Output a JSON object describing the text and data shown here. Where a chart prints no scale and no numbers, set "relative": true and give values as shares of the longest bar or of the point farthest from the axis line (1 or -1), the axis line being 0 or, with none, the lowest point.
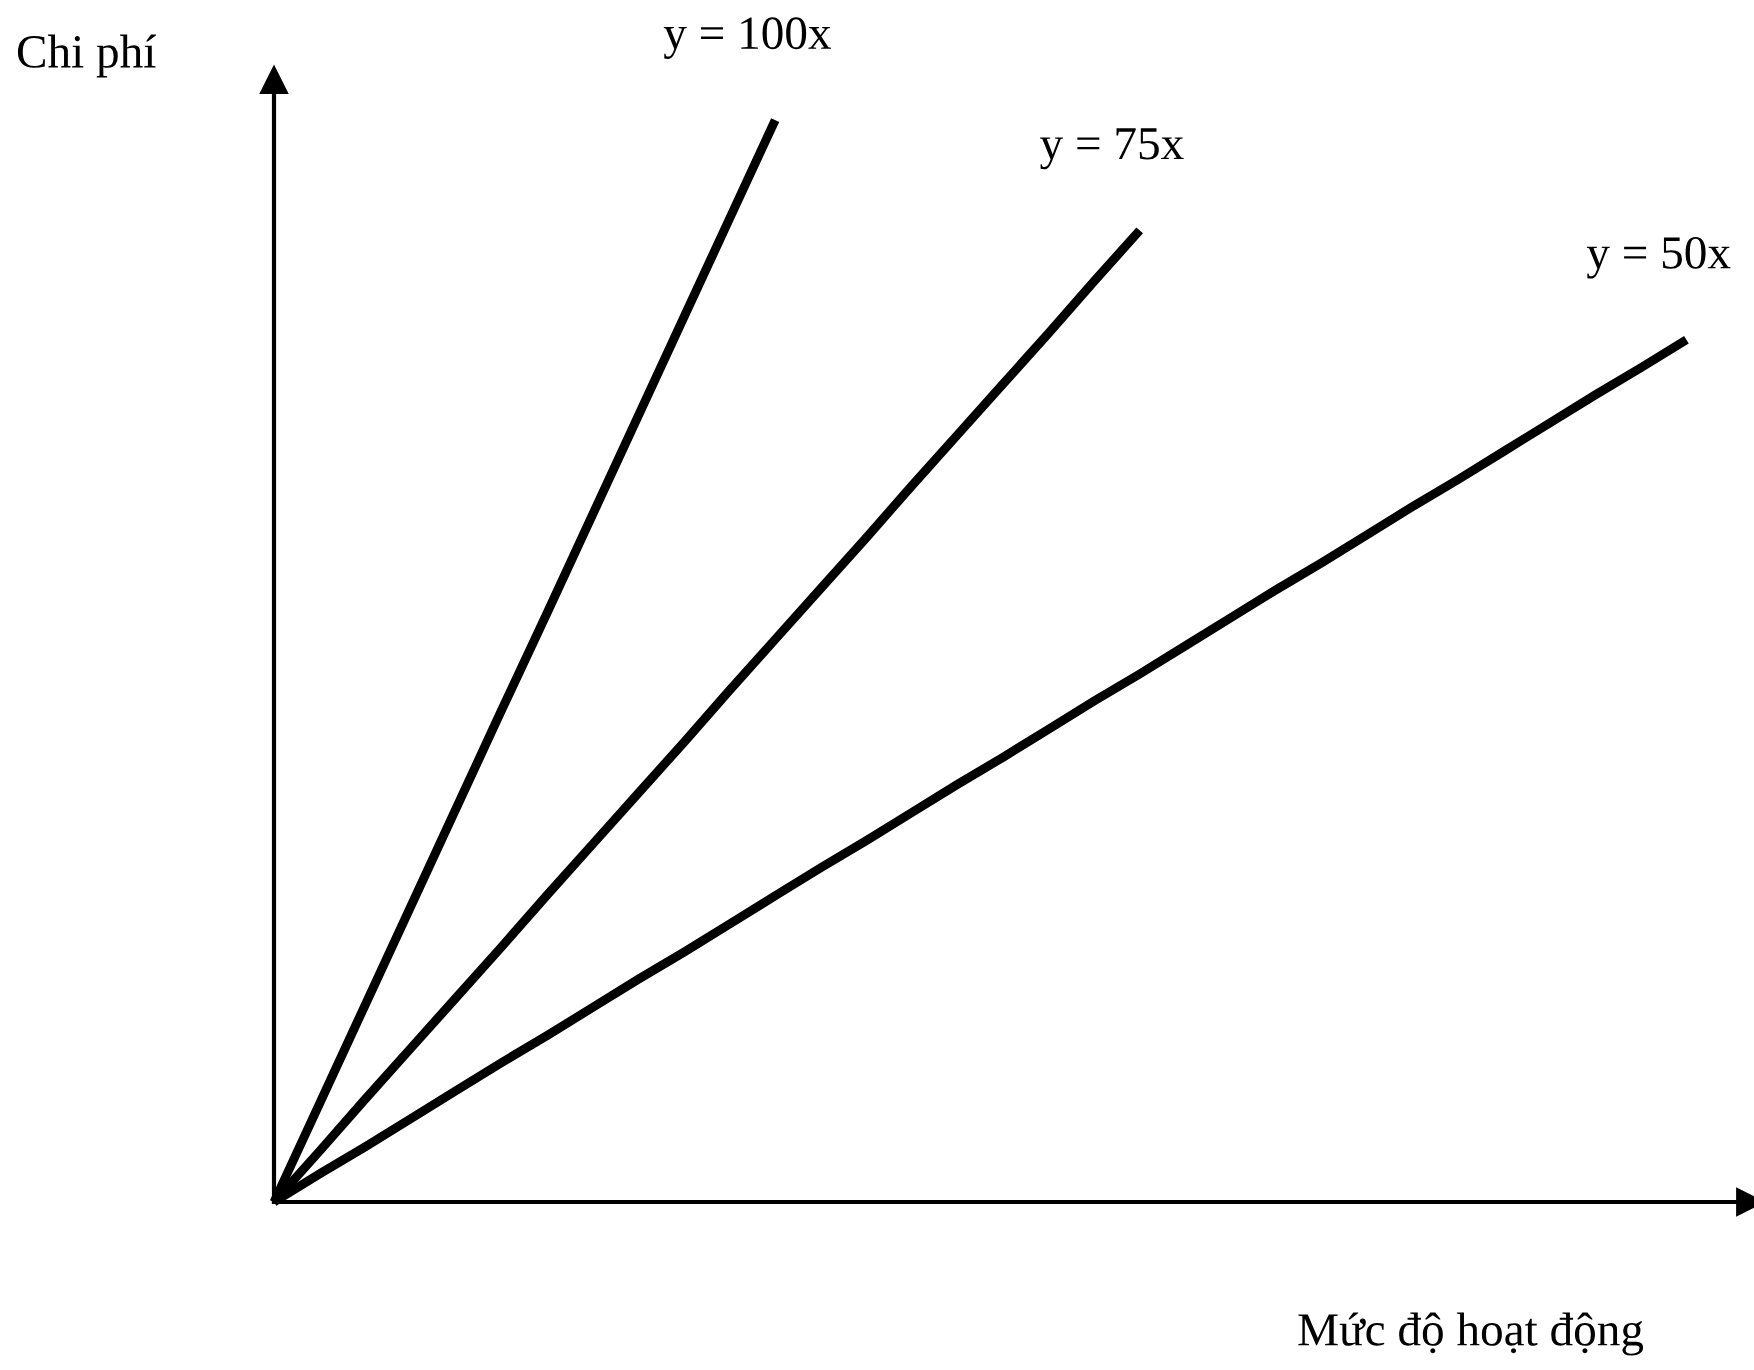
{
  "chart_data": {
    "type": "line",
    "relative": true,
    "xlabel": "Mức độ hoạt động",
    "ylabel": "Chi phí",
    "categories": [
      null,
      null,
      null,
      null,
      null,
      null,
      null,
      null,
      null,
      null,
      null,
      null,
      null,
      null,
      null,
      null,
      null,
      null,
      null,
      null,
      null,
      null,
      null,
      null,
      null,
      null,
      null,
      null,
      null,
      null,
      null,
      null
    ],
    "series": [
      {
        "name": "y = 100x",
        "color": "#000000",
        "values": [
          0,
          0.091,
          0.182,
          0.273,
          0.364,
          0.455,
          0.545,
          0.636,
          0.727,
          0.818,
          0.909,
          1,
          null,
          null,
          null,
          null,
          null,
          null,
          null,
          null,
          null,
          null,
          null,
          null,
          null,
          null,
          null,
          null,
          null,
          null,
          null,
          null
        ]
      },
      {
        "name": "y = 75x",
        "color": "#000000",
        "values": [
          0,
          0.047,
          0.095,
          0.142,
          0.189,
          0.236,
          0.284,
          0.331,
          0.378,
          0.425,
          0.473,
          0.52,
          0.567,
          0.614,
          0.662,
          0.709,
          0.756,
          0.803,
          0.851,
          0.898,
          null,
          null,
          null,
          null,
          null,
          null,
          null,
          null,
          null,
          null,
          null,
          null
        ]
      },
      {
        "name": "y = 50x",
        "color": "#000000",
        "values": [
          0,
          0.026,
          0.051,
          0.077,
          0.103,
          0.129,
          0.154,
          0.18,
          0.206,
          0.231,
          0.257,
          0.283,
          0.309,
          0.334,
          0.36,
          0.386,
          0.411,
          0.437,
          0.463,
          0.488,
          0.514,
          0.54,
          0.566,
          0.591,
          0.617,
          0.643,
          0.668,
          0.694,
          0.72,
          0.746,
          0.771,
          0.797
        ]
      }
    ]
  }
}
